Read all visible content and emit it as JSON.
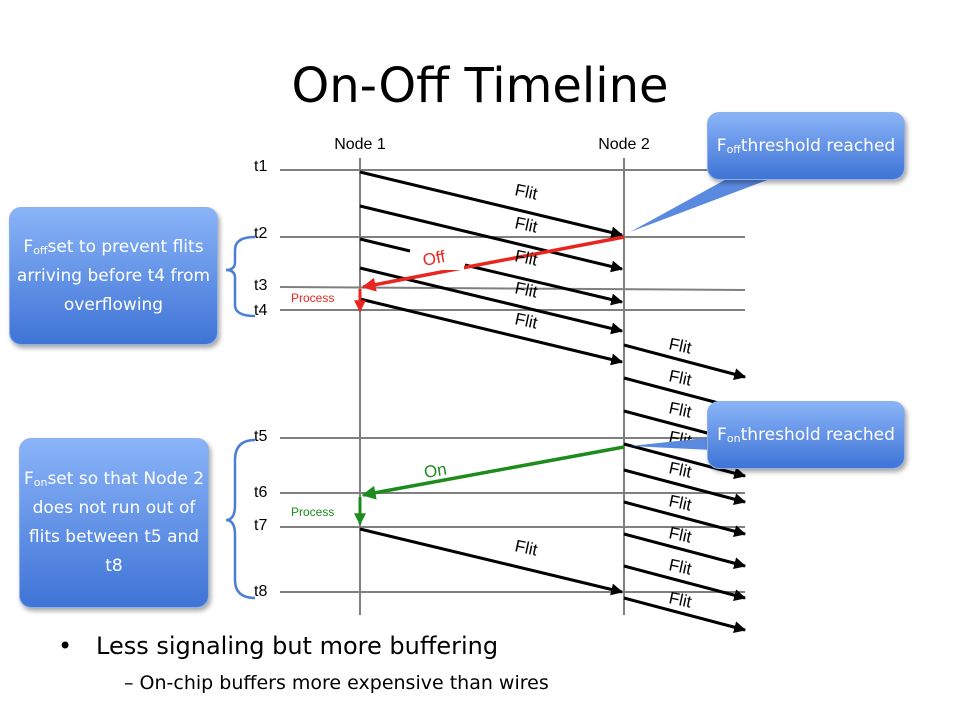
{
  "title": "On-Off Timeline",
  "nodes": [
    "Node 1",
    "Node 2"
  ],
  "time_labels": [
    "t1",
    "t2",
    "t3",
    "t4",
    "t5",
    "t6",
    "t7",
    "t8"
  ],
  "message_labels": {
    "flit": "Flit",
    "off": "Off",
    "on": "On",
    "process": "Process"
  },
  "callouts": {
    "off_threshold": {
      "symbol": "F",
      "subscript": "off",
      "text": "threshold reached"
    },
    "on_threshold": {
      "symbol": "F",
      "subscript": "on",
      "text": "threshold reached"
    },
    "off_set": {
      "symbol": "F",
      "subscript": "off",
      "text": "set to prevent flits arriving before t4 from overflowing"
    },
    "on_set": {
      "symbol": "F",
      "subscript": "on",
      "text": "set so that Node 2 does not run out of flits between t5 and t8"
    }
  },
  "bullets": {
    "main": "Less signaling but more buffering",
    "sub": "On-chip buffers more expensive than wires"
  },
  "colors": {
    "off_signal": "#e8261f",
    "on_signal": "#1e8b1e",
    "callout_top": "#8ab4f8",
    "callout_bottom": "#3f74d6"
  }
}
